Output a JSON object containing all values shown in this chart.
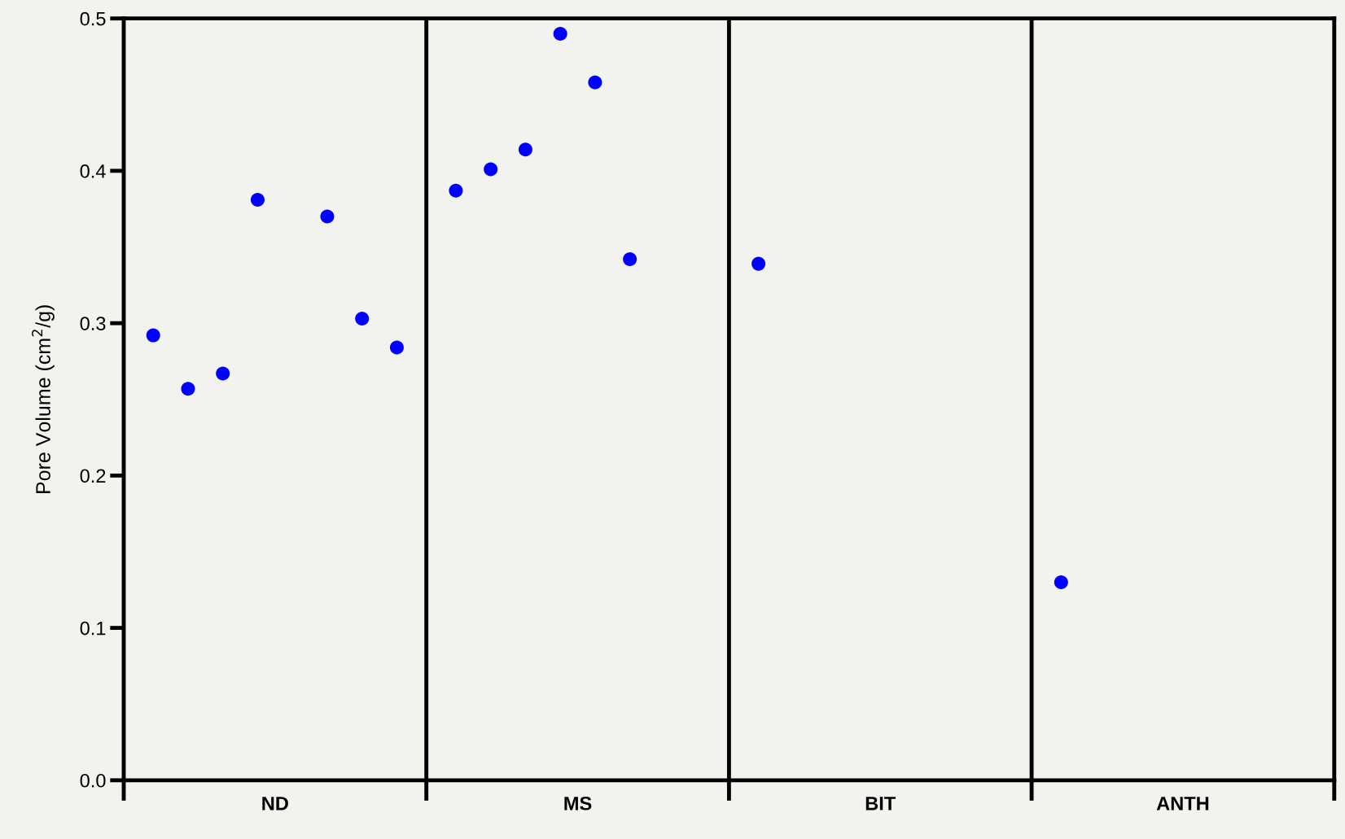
{
  "chart_data": {
    "type": "scatter",
    "ylabel": "Pore Volume (cm$^{2}$/g)",
    "categories": [
      "ND",
      "MS",
      "BIT",
      "ANTH"
    ],
    "series": [
      {
        "color": "#0000ff",
        "values": [
          0.292,
          0.387,
          0.339,
          0.13
        ]
      },
      {
        "color": "#0000ff",
        "values": [
          0.257,
          0.401,
          null,
          null
        ]
      },
      {
        "color": "#0000ff",
        "values": [
          0.267,
          0.414,
          null,
          null
        ]
      },
      {
        "color": "#0000ff",
        "values": [
          0.381,
          0.49,
          null,
          null
        ]
      },
      {
        "color": "#0000ff",
        "values": [
          null,
          0.458,
          null,
          null
        ]
      },
      {
        "color": "#0000ff",
        "values": [
          0.37,
          0.342,
          null,
          null
        ]
      },
      {
        "color": "#0000ff",
        "values": [
          0.303,
          null,
          null,
          null
        ]
      },
      {
        "color": "#0000ff",
        "values": [
          0.284,
          null,
          null,
          null
        ]
      }
    ],
    "ylim": [
      0,
      0.5
    ],
    "yticks": [
      {
        "value": 0,
        "label": "0.0"
      },
      0.1,
      0.2,
      0.3,
      0.4,
      0.5
    ],
    "grid": false,
    "marker": "circle",
    "legend": false
  }
}
